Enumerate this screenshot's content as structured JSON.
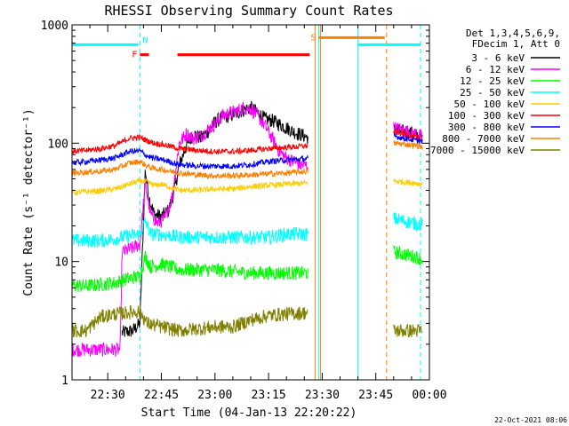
{
  "chart_data": {
    "type": "line",
    "title": "RHESSI Observing Summary Count Rates",
    "xlabel": "Start Time (04-Jan-13 22:20:22)",
    "ylabel": "Count Rate (s⁻¹ detector⁻¹)",
    "yscale": "log",
    "ylim": [
      1,
      1000
    ],
    "xlim_minutes_after_22_20": [
      0,
      100
    ],
    "x_ticks": [
      {
        "label": "22:30",
        "t": 10
      },
      {
        "label": "22:45",
        "t": 25
      },
      {
        "label": "23:00",
        "t": 40
      },
      {
        "label": "23:15",
        "t": 55
      },
      {
        "label": "23:30",
        "t": 70
      },
      {
        "label": "23:45",
        "t": 85
      },
      {
        "label": "00:00",
        "t": 100
      }
    ],
    "y_ticks": [
      {
        "label": "1",
        "v": 1
      },
      {
        "label": "10",
        "v": 10
      },
      {
        "label": "100",
        "v": 100
      },
      {
        "label": "1000",
        "v": 1000
      }
    ],
    "legend_header": [
      "Det 1,3,4,5,6,9,",
      "FDecim 1, Att 0"
    ],
    "legend_placement": "right",
    "timestamp": "22-Oct-2021 08:06",
    "flags": [
      {
        "label": "N",
        "color": "#00ffff",
        "t_start": 0,
        "t_end": 18.5,
        "y": 680
      },
      {
        "label": "F",
        "color": "#ff0000",
        "t_start": 19,
        "t_end": 21.5,
        "y": 560
      },
      {
        "label": "",
        "color": "#ff0000",
        "t_start": 29.5,
        "t_end": 66.5,
        "y": 560
      },
      {
        "label": "S",
        "color": "#ff8000",
        "t_start": 69,
        "t_end": 87.5,
        "y": 780
      },
      {
        "label": "",
        "color": "#00ffff",
        "t_start": 80,
        "t_end": 97.5,
        "y": 680
      }
    ],
    "markers": [
      {
        "t": 19,
        "color": "#00ffff",
        "style": "dashed"
      },
      {
        "t": 69,
        "color": "#00ffff",
        "style": "solid"
      },
      {
        "t": 80,
        "color": "#00ffff",
        "style": "solid"
      },
      {
        "t": 97.5,
        "color": "#00ffff",
        "style": "dashed"
      },
      {
        "t": 68,
        "color": "#ff8000",
        "style": "solid"
      },
      {
        "t": 69.5,
        "color": "#ff8000",
        "style": "solid"
      },
      {
        "t": 88,
        "color": "#ff8000",
        "style": "dashed"
      }
    ],
    "series": [
      {
        "name": "3 - 6 keV",
        "color": "#000000",
        "points": [
          [
            14,
            2.5
          ],
          [
            17,
            2.6
          ],
          [
            19,
            3.0
          ],
          [
            20.5,
            60
          ],
          [
            21.5,
            35
          ],
          [
            23,
            25
          ],
          [
            25,
            24
          ],
          [
            27,
            27
          ],
          [
            28.5,
            38
          ],
          [
            30,
            65
          ],
          [
            32,
            95
          ],
          [
            34,
            120
          ],
          [
            36,
            110
          ],
          [
            38,
            125
          ],
          [
            40,
            150
          ],
          [
            42,
            165
          ],
          [
            44,
            170
          ],
          [
            46,
            180
          ],
          [
            48,
            190
          ],
          [
            50,
            200
          ],
          [
            52,
            180
          ],
          [
            54,
            160
          ],
          [
            56,
            155
          ],
          [
            58,
            145
          ],
          [
            60,
            135
          ],
          [
            62,
            125
          ],
          [
            64,
            118
          ],
          [
            66,
            112
          ]
        ],
        "post": [
          [
            90,
            130
          ],
          [
            93,
            125
          ],
          [
            96,
            118
          ],
          [
            98,
            110
          ]
        ]
      },
      {
        "name": "6 - 12 keV",
        "color": "#ff00ff",
        "points": [
          [
            0,
            1.8
          ],
          [
            4,
            1.8
          ],
          [
            8,
            1.8
          ],
          [
            13.5,
            1.8
          ],
          [
            14,
            12
          ],
          [
            17,
            13
          ],
          [
            19,
            14
          ],
          [
            20.5,
            45
          ],
          [
            22,
            25
          ],
          [
            24,
            21
          ],
          [
            26,
            23
          ],
          [
            28,
            35
          ],
          [
            30,
            100
          ],
          [
            32,
            120
          ],
          [
            34,
            110
          ],
          [
            36,
            115
          ],
          [
            38,
            130
          ],
          [
            40,
            145
          ],
          [
            42,
            170
          ],
          [
            44,
            180
          ],
          [
            46,
            185
          ],
          [
            48,
            200
          ],
          [
            50,
            195
          ],
          [
            52,
            170
          ],
          [
            54,
            140
          ],
          [
            56,
            110
          ],
          [
            58,
            85
          ],
          [
            60,
            75
          ],
          [
            62,
            70
          ],
          [
            64,
            65
          ],
          [
            66,
            65
          ]
        ],
        "post": [
          [
            90,
            135
          ],
          [
            93,
            128
          ],
          [
            96,
            120
          ],
          [
            98,
            112
          ]
        ]
      },
      {
        "name": "12 - 25 keV",
        "color": "#00ff00",
        "points": [
          [
            0,
            6.3
          ],
          [
            4,
            6.2
          ],
          [
            8,
            6.4
          ],
          [
            12,
            6.6
          ],
          [
            16,
            7.2
          ],
          [
            19,
            7.5
          ],
          [
            20.5,
            11
          ],
          [
            22,
            9
          ],
          [
            25,
            9.5
          ],
          [
            30,
            8.5
          ],
          [
            35,
            8.5
          ],
          [
            40,
            8.5
          ],
          [
            45,
            8.2
          ],
          [
            50,
            8.0
          ],
          [
            55,
            8.0
          ],
          [
            60,
            8.0
          ],
          [
            66,
            8.0
          ]
        ],
        "post": [
          [
            90,
            12
          ],
          [
            93,
            11.5
          ],
          [
            96,
            11
          ],
          [
            98,
            10.5
          ]
        ]
      },
      {
        "name": "25 - 50 keV",
        "color": "#00ffff",
        "points": [
          [
            0,
            15
          ],
          [
            4,
            15
          ],
          [
            8,
            15
          ],
          [
            12,
            15.5
          ],
          [
            16,
            16.5
          ],
          [
            19,
            17
          ],
          [
            20.5,
            22
          ],
          [
            22,
            17
          ],
          [
            25,
            17
          ],
          [
            30,
            16
          ],
          [
            35,
            16
          ],
          [
            40,
            16
          ],
          [
            45,
            16
          ],
          [
            50,
            16
          ],
          [
            55,
            16
          ],
          [
            60,
            17
          ],
          [
            66,
            17
          ]
        ],
        "post": [
          [
            90,
            23
          ],
          [
            93,
            22
          ],
          [
            96,
            21
          ],
          [
            98,
            20.5
          ]
        ]
      },
      {
        "name": "50 - 100 keV",
        "color": "#ffcc00",
        "points": [
          [
            0,
            38
          ],
          [
            4,
            39
          ],
          [
            8,
            39.5
          ],
          [
            12,
            41
          ],
          [
            16,
            45
          ],
          [
            19,
            48
          ],
          [
            21,
            47
          ],
          [
            23,
            44
          ],
          [
            25,
            45
          ],
          [
            30,
            40
          ],
          [
            35,
            40
          ],
          [
            40,
            41
          ],
          [
            45,
            41
          ],
          [
            50,
            43
          ],
          [
            55,
            44
          ],
          [
            60,
            45
          ],
          [
            66,
            46
          ]
        ],
        "post": [
          [
            90,
            48
          ],
          [
            93,
            47
          ],
          [
            96,
            46
          ],
          [
            98,
            45
          ]
        ]
      },
      {
        "name": "100 - 300 keV",
        "color": "#ff0000",
        "points": [
          [
            0,
            85
          ],
          [
            4,
            87
          ],
          [
            8,
            90
          ],
          [
            12,
            95
          ],
          [
            16,
            110
          ],
          [
            19,
            112
          ],
          [
            21,
            105
          ],
          [
            23,
            100
          ],
          [
            25,
            98
          ],
          [
            30,
            90
          ],
          [
            35,
            87
          ],
          [
            40,
            85
          ],
          [
            45,
            85
          ],
          [
            50,
            87
          ],
          [
            55,
            90
          ],
          [
            60,
            92
          ],
          [
            66,
            95
          ]
        ],
        "post": [
          [
            90,
            125
          ],
          [
            93,
            120
          ],
          [
            96,
            113
          ],
          [
            98,
            105
          ]
        ]
      },
      {
        "name": "300 - 800 keV",
        "color": "#0000ff",
        "points": [
          [
            0,
            68
          ],
          [
            4,
            70
          ],
          [
            8,
            72
          ],
          [
            12,
            75
          ],
          [
            16,
            85
          ],
          [
            19,
            86
          ],
          [
            21,
            78
          ],
          [
            23,
            74
          ],
          [
            25,
            73
          ],
          [
            30,
            66
          ],
          [
            35,
            64
          ],
          [
            40,
            64
          ],
          [
            45,
            64
          ],
          [
            50,
            66
          ],
          [
            55,
            70
          ],
          [
            60,
            72
          ],
          [
            66,
            74
          ]
        ],
        "post": [
          [
            90,
            115
          ],
          [
            93,
            110
          ],
          [
            96,
            106
          ],
          [
            98,
            103
          ]
        ]
      },
      {
        "name": "800 - 7000 keV",
        "color": "#ff8000",
        "points": [
          [
            0,
            56
          ],
          [
            4,
            57
          ],
          [
            8,
            58
          ],
          [
            12,
            60
          ],
          [
            16,
            68
          ],
          [
            19,
            70
          ],
          [
            21,
            64
          ],
          [
            23,
            61
          ],
          [
            25,
            60
          ],
          [
            30,
            56
          ],
          [
            35,
            54
          ],
          [
            40,
            53
          ],
          [
            45,
            53
          ],
          [
            50,
            54
          ],
          [
            55,
            55
          ],
          [
            60,
            56
          ],
          [
            66,
            58
          ]
        ],
        "post": [
          [
            90,
            100
          ],
          [
            93,
            98
          ],
          [
            96,
            96
          ],
          [
            98,
            93
          ]
        ]
      },
      {
        "name": "7000 - 15000 keV",
        "color": "#808000",
        "points": [
          [
            0,
            2.6
          ],
          [
            4,
            2.6
          ],
          [
            8,
            3.4
          ],
          [
            12,
            3.6
          ],
          [
            16,
            3.7
          ],
          [
            19,
            3.8
          ],
          [
            21,
            3.0
          ],
          [
            25,
            2.8
          ],
          [
            30,
            2.6
          ],
          [
            35,
            2.7
          ],
          [
            40,
            2.8
          ],
          [
            45,
            2.8
          ],
          [
            50,
            3.2
          ],
          [
            55,
            3.5
          ],
          [
            60,
            3.6
          ],
          [
            66,
            3.7
          ]
        ],
        "post": [
          [
            90,
            2.6
          ],
          [
            93,
            2.6
          ],
          [
            96,
            2.6
          ],
          [
            98,
            2.6
          ]
        ]
      }
    ]
  }
}
